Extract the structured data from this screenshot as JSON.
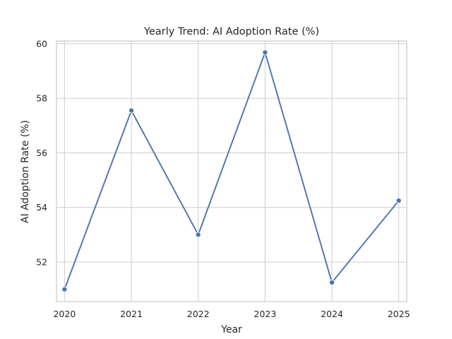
{
  "chart_data": {
    "type": "line",
    "title": "Yearly Trend: AI Adoption Rate (%)",
    "xlabel": "Year",
    "ylabel": "AI Adoption Rate (%)",
    "x": [
      2020,
      2021,
      2022,
      2023,
      2024,
      2025
    ],
    "x_ticks": [
      "2020",
      "2021",
      "2022",
      "2023",
      "2024",
      "2025"
    ],
    "y_ticks": [
      "52",
      "54",
      "56",
      "58",
      "60"
    ],
    "series": [
      {
        "values": [
          51.0,
          57.55,
          53.0,
          59.68,
          51.25,
          54.25
        ]
      }
    ],
    "xlim": [
      2019.88,
      2025.12
    ],
    "ylim": [
      50.55,
      60.1
    ],
    "grid": true,
    "line_color": "#4c72b0",
    "grid_color": "#cccccc",
    "spine_color": "#cccccc"
  }
}
